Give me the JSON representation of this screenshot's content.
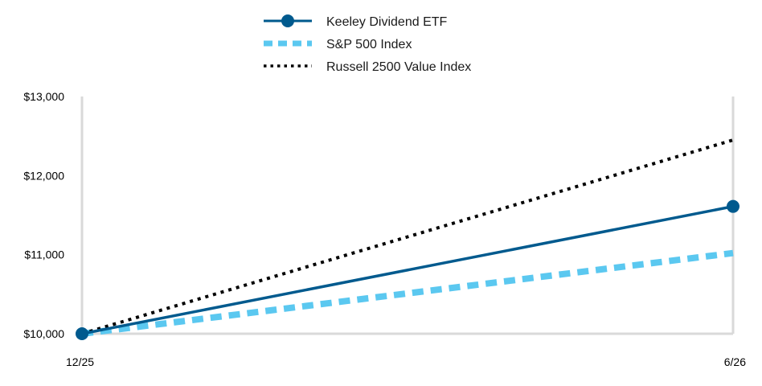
{
  "chart_data": {
    "type": "line",
    "title": "",
    "xlabel": "",
    "ylabel": "",
    "categories": [
      "12/25",
      "6/26"
    ],
    "y_ticks": [
      "$10,000",
      "$11,000",
      "$12,000",
      "$13,000"
    ],
    "ylim": [
      10000,
      13000
    ],
    "grid": false,
    "legend_position": "top-center",
    "series": [
      {
        "name": "Keeley Dividend ETF",
        "values": [
          10000,
          11610
        ],
        "color": "#005A8E",
        "style": "solid-with-markers"
      },
      {
        "name": "S&P 500 Index",
        "values": [
          10000,
          11020
        ],
        "color": "#5BC8F0",
        "style": "thick-dashed"
      },
      {
        "name": "Russell 2500 Value Index",
        "values": [
          10000,
          12450
        ],
        "color": "#000000",
        "style": "dotted"
      }
    ]
  }
}
